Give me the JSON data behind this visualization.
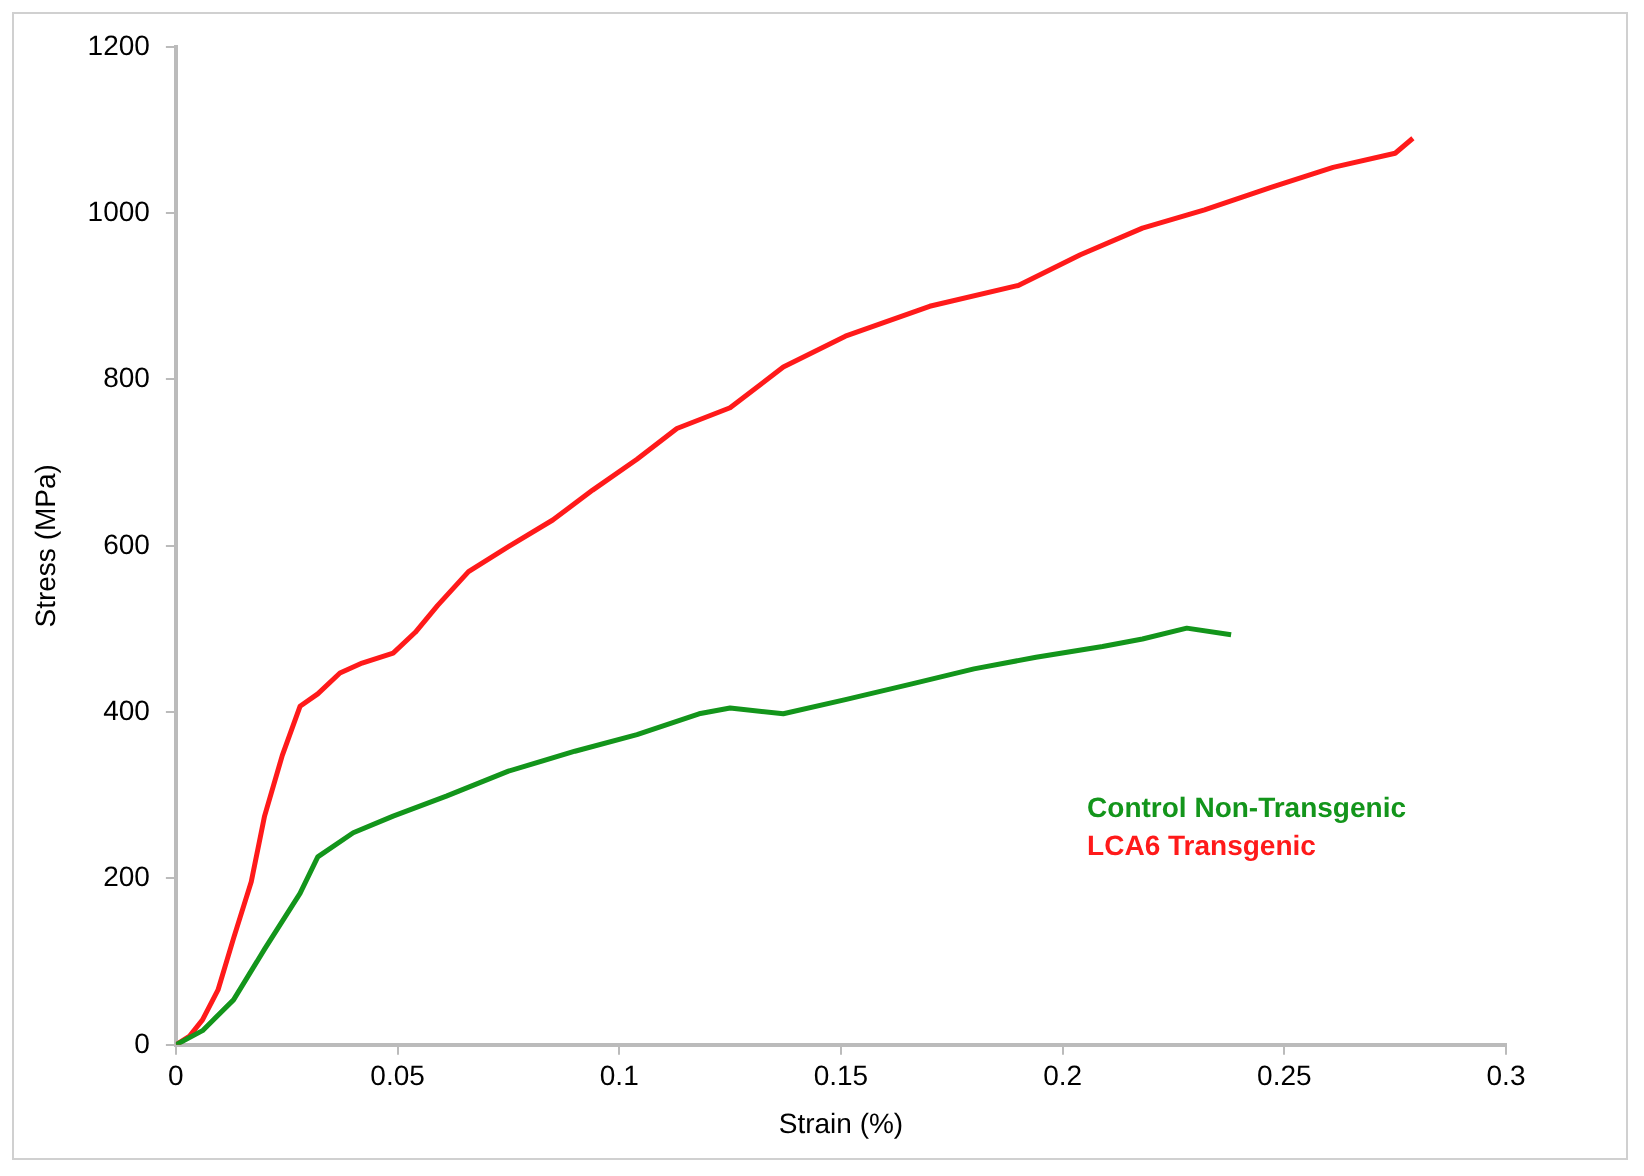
{
  "chart_data": {
    "type": "line",
    "xlabel": "Strain (%)",
    "ylabel": "Stress (MPa)",
    "xlim": [
      0,
      0.3
    ],
    "xticks": [
      0,
      0.05,
      0.1,
      0.15,
      0.2,
      0.25,
      0.3
    ],
    "ylim": [
      0,
      1200
    ],
    "yticks": [
      0,
      200,
      400,
      600,
      800,
      1000,
      1200
    ],
    "grid": false,
    "legend": "bottom right",
    "marker": "none",
    "series": [
      {
        "name": "Control Non-Transgenic",
        "color": "#13951b",
        "x": [
          0,
          0.006,
          0.013,
          0.02,
          0.028,
          0.032,
          0.04,
          0.049,
          0.061,
          0.075,
          0.09,
          0.104,
          0.118,
          0.125,
          0.137,
          0.151,
          0.166,
          0.18,
          0.194,
          0.209,
          0.218,
          0.228,
          0.238
        ],
        "values": [
          0,
          17,
          54,
          115,
          182,
          226,
          255,
          275,
          299,
          329,
          353,
          373,
          398,
          405,
          398,
          415,
          434,
          452,
          466,
          479,
          488,
          501,
          493
        ]
      },
      {
        "name": "LCA6 Transgenic",
        "color": "#ff1a1a",
        "x": [
          0,
          0.003,
          0.006,
          0.0095,
          0.013,
          0.017,
          0.02,
          0.024,
          0.028,
          0.032,
          0.037,
          0.042,
          0.049,
          0.054,
          0.059,
          0.066,
          0.075,
          0.085,
          0.094,
          0.104,
          0.113,
          0.125,
          0.137,
          0.151,
          0.17,
          0.19,
          0.204,
          0.218,
          0.232,
          0.247,
          0.261,
          0.275,
          0.279
        ],
        "values": [
          0,
          10,
          30,
          66,
          128,
          196,
          275,
          348,
          407,
          422,
          447,
          459,
          471,
          496,
          528,
          569,
          599,
          631,
          667,
          704,
          741,
          766,
          815,
          852,
          888,
          913,
          950,
          982,
          1004,
          1031,
          1055,
          1072,
          1090
        ]
      }
    ]
  }
}
